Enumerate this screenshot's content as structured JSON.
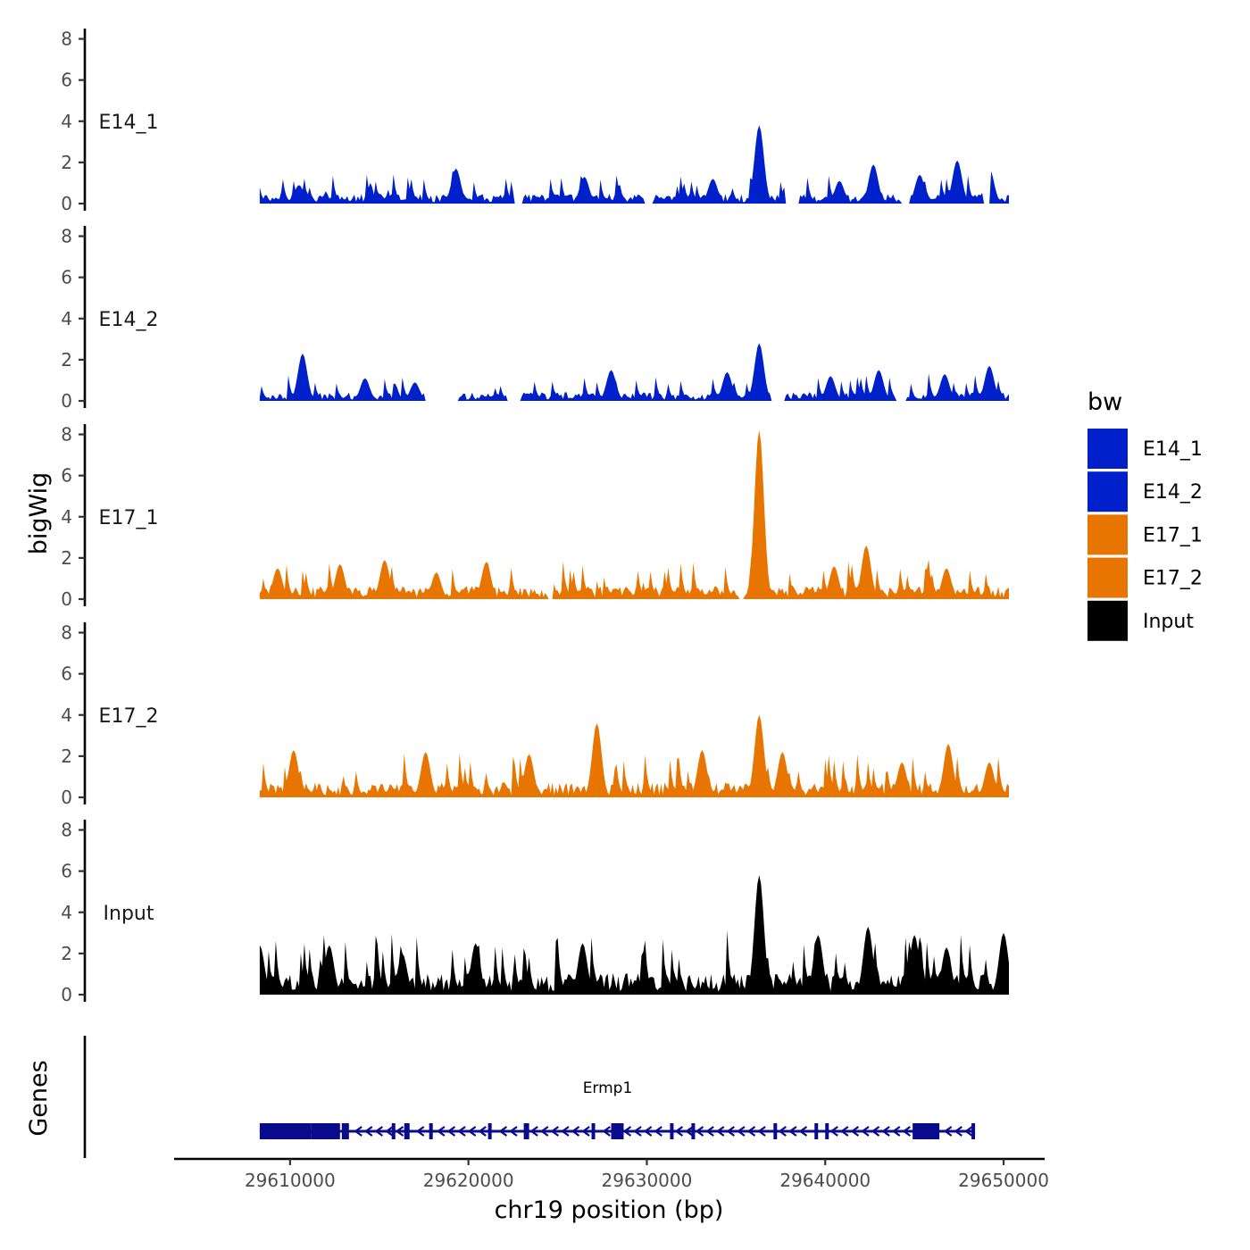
{
  "chart_data": {
    "type": "area",
    "title": "",
    "xlabel": "chr19 position (bp)",
    "ylabel": "bigWig",
    "xlim": [
      29603500,
      29652300
    ],
    "ylim": [
      0,
      8.5
    ],
    "x_ticks": [
      29610000,
      29620000,
      29630000,
      29640000,
      29650000
    ],
    "x_tick_labels": [
      "29610000",
      "29620000",
      "29630000",
      "29640000",
      "29650000"
    ],
    "y_ticks": [
      0,
      2,
      4,
      6,
      8
    ],
    "y_tick_labels": [
      "0",
      "2",
      "4",
      "6",
      "8"
    ],
    "region": [
      29608300,
      29650300
    ],
    "legend": {
      "title": "bw",
      "position": "right",
      "entries": [
        {
          "name": "E14_1",
          "color": "#0020cc"
        },
        {
          "name": "E14_2",
          "color": "#0020cc"
        },
        {
          "name": "E17_1",
          "color": "#e87500"
        },
        {
          "name": "E17_2",
          "color": "#e87500"
        },
        {
          "name": "Input",
          "color": "#000000"
        }
      ]
    },
    "series": [
      {
        "name": "E14_1",
        "color": "#0020cc",
        "background": 0.45,
        "noise": 0.3,
        "peaks": [
          [
            29636300,
            3.8
          ],
          [
            29610500,
            0.9
          ],
          [
            29619300,
            1.7
          ],
          [
            29633700,
            1.2
          ],
          [
            29642700,
            1.9
          ],
          [
            29645300,
            1.4
          ],
          [
            29647400,
            2.1
          ],
          [
            29649200,
            1.7
          ],
          [
            29626500,
            1.3
          ],
          [
            29640800,
            1.1
          ]
        ],
        "gaps": [
          [
            29622600,
            29623000
          ],
          [
            29629900,
            29630300
          ],
          [
            29637800,
            29638500
          ],
          [
            29644300,
            29644700
          ],
          [
            29648900,
            29649200
          ]
        ]
      },
      {
        "name": "E14_2",
        "color": "#0020cc",
        "background": 0.4,
        "noise": 0.3,
        "peaks": [
          [
            29636300,
            2.8
          ],
          [
            29610700,
            2.3
          ],
          [
            29617000,
            0.9
          ],
          [
            29628000,
            1.5
          ],
          [
            29634500,
            1.4
          ],
          [
            29643000,
            1.5
          ],
          [
            29646700,
            1.3
          ],
          [
            29649200,
            1.7
          ],
          [
            29614200,
            1.1
          ],
          [
            29640300,
            1.2
          ]
        ],
        "gaps": [
          [
            29617600,
            29619400
          ],
          [
            29622200,
            29622900
          ],
          [
            29637000,
            29637700
          ],
          [
            29644000,
            29644500
          ]
        ]
      },
      {
        "name": "E17_1",
        "color": "#e87500",
        "background": 0.6,
        "noise": 0.35,
        "peaks": [
          [
            29636300,
            8.2
          ],
          [
            29642300,
            2.6
          ],
          [
            29612800,
            1.7
          ],
          [
            29615300,
            1.9
          ],
          [
            29618200,
            1.3
          ],
          [
            29621000,
            1.8
          ],
          [
            29646800,
            1.5
          ],
          [
            29640500,
            1.6
          ],
          [
            29609300,
            1.5
          ]
        ],
        "gaps": [
          [
            29624500,
            29624700
          ],
          [
            29635200,
            29635400
          ]
        ]
      },
      {
        "name": "E17_2",
        "color": "#e87500",
        "background": 0.7,
        "noise": 0.4,
        "peaks": [
          [
            29636300,
            4.0
          ],
          [
            29627200,
            3.6
          ],
          [
            29633100,
            2.3
          ],
          [
            29637600,
            2.2
          ],
          [
            29646900,
            2.6
          ],
          [
            29617600,
            2.2
          ],
          [
            29610200,
            2.3
          ],
          [
            29623400,
            2.1
          ],
          [
            29644300,
            1.7
          ],
          [
            29649200,
            1.7
          ]
        ],
        "gaps": []
      },
      {
        "name": "Input",
        "color": "#000000",
        "background": 1.0,
        "noise": 0.55,
        "peaks": [
          [
            29636300,
            5.8
          ],
          [
            29650000,
            3.0
          ],
          [
            29642400,
            3.3
          ],
          [
            29645000,
            2.9
          ],
          [
            29639600,
            2.9
          ],
          [
            29626400,
            2.5
          ],
          [
            29620400,
            2.5
          ],
          [
            29612200,
            2.4
          ],
          [
            29608300,
            2.4
          ],
          [
            29646800,
            2.3
          ],
          [
            29616300,
            2.0
          ]
        ],
        "gaps": []
      }
    ],
    "genes_track": {
      "label": "Genes",
      "gene_name": "Ermp1",
      "strand": "-",
      "start": 29608300,
      "end": 29648300,
      "color": "#0a0a8c",
      "exons": [
        [
          29608300,
          29611200
        ],
        [
          29611200,
          29612800
        ],
        [
          29612900,
          29613300
        ],
        [
          29615700,
          29615900
        ],
        [
          29616400,
          29616700
        ],
        [
          29617800,
          29618000
        ],
        [
          29621100,
          29621300
        ],
        [
          29623100,
          29623400
        ],
        [
          29626900,
          29627100
        ],
        [
          29628000,
          29628700
        ],
        [
          29631300,
          29631500
        ],
        [
          29632500,
          29632700
        ],
        [
          29637100,
          29637300
        ],
        [
          29639400,
          29639600
        ],
        [
          29640000,
          29640200
        ],
        [
          29644900,
          29646400
        ],
        [
          29648200,
          29648400
        ]
      ]
    }
  }
}
